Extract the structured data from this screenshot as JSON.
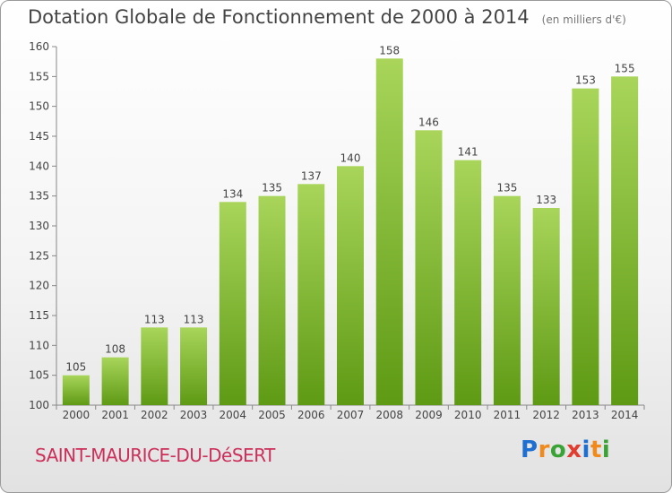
{
  "title": "Dotation Globale de Fonctionnement de 2000 à 2014",
  "subtitle": "(en milliers d'€)",
  "place": "SAINT-MAURICE-DU-DéSERT",
  "logo": {
    "letters": [
      "P",
      "r",
      "o",
      "x",
      "i",
      "t",
      "i"
    ],
    "colors": [
      "#1f6fd1",
      "#f08a1c",
      "#3aa336",
      "#e23c2f",
      "#1f6fd1",
      "#f08a1c",
      "#3aa336"
    ]
  },
  "colors": {
    "bar_light": "#a8d55a",
    "bar_dark": "#5e9a14",
    "place": "#cc2f5a"
  },
  "chart_data": {
    "type": "bar",
    "categories": [
      "2000",
      "2001",
      "2002",
      "2003",
      "2004",
      "2005",
      "2006",
      "2007",
      "2008",
      "2009",
      "2010",
      "2011",
      "2012",
      "2013",
      "2014"
    ],
    "values": [
      105,
      108,
      113,
      113,
      134,
      135,
      137,
      140,
      158,
      146,
      141,
      135,
      133,
      153,
      155
    ],
    "ylim": [
      100,
      160
    ],
    "yticks": [
      100,
      105,
      110,
      115,
      120,
      125,
      130,
      135,
      140,
      145,
      150,
      155,
      160
    ],
    "grid": false,
    "legend": "none"
  }
}
